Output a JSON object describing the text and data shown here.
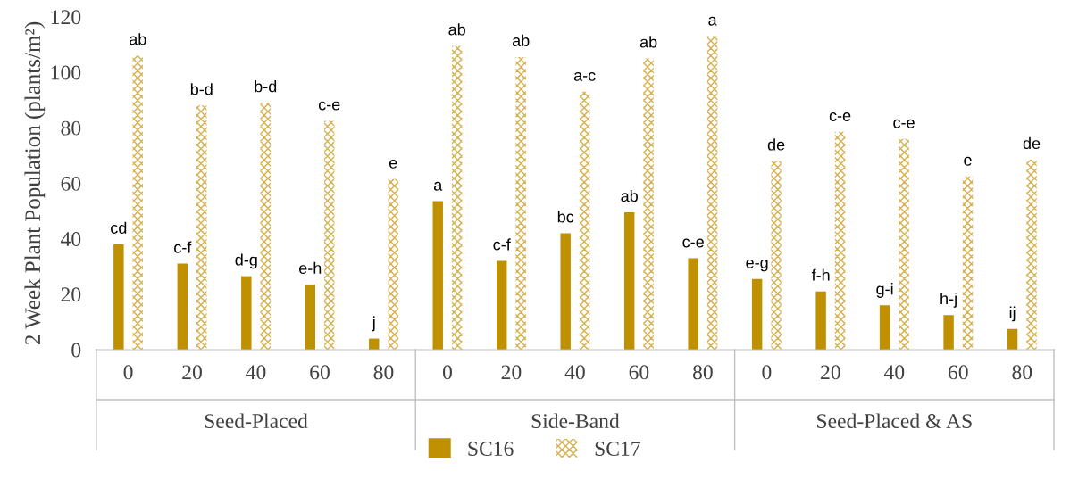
{
  "chart_data": {
    "type": "bar",
    "ylabel": "2 Week Plant Population (plants/m²)",
    "categories": [
      "0",
      "20",
      "40",
      "60",
      "80",
      "0",
      "20",
      "40",
      "60",
      "80",
      "0",
      "20",
      "40",
      "60",
      "80"
    ],
    "annotations": [
      "Seed-Placed",
      "Side-Band",
      "Seed-Placed & AS"
    ],
    "series": [
      {
        "name": "SC16",
        "color": "#bf9000",
        "values": [
          38,
          31,
          26.5,
          23.5,
          4,
          53.5,
          32,
          42,
          49.5,
          33,
          25.5,
          21,
          16,
          12.5,
          7.5
        ],
        "value_labels": [
          "cd",
          "c-f",
          "d-g",
          "e-h",
          "j",
          "a",
          "c-f",
          "bc",
          "ab",
          "c-e",
          "e-g",
          "f-h",
          "g-i",
          "h-j",
          "ij"
        ]
      },
      {
        "name": "SC17",
        "color": "#d6b04c",
        "values": [
          106,
          88,
          89,
          82.5,
          61.5,
          109.5,
          105.5,
          93,
          105,
          113,
          68,
          78.5,
          76,
          62.5,
          68.5
        ],
        "value_labels": [
          "ab",
          "b-d",
          "b-d",
          "c-e",
          "e",
          "ab",
          "ab",
          "a-c",
          "ab",
          "a",
          "de",
          "c-e",
          "c-e",
          "e",
          "de"
        ]
      }
    ],
    "ylim": [
      0,
      120
    ],
    "yticks": [
      0,
      20,
      40,
      60,
      80,
      100,
      120
    ],
    "grid": false,
    "legend": "bottom"
  }
}
